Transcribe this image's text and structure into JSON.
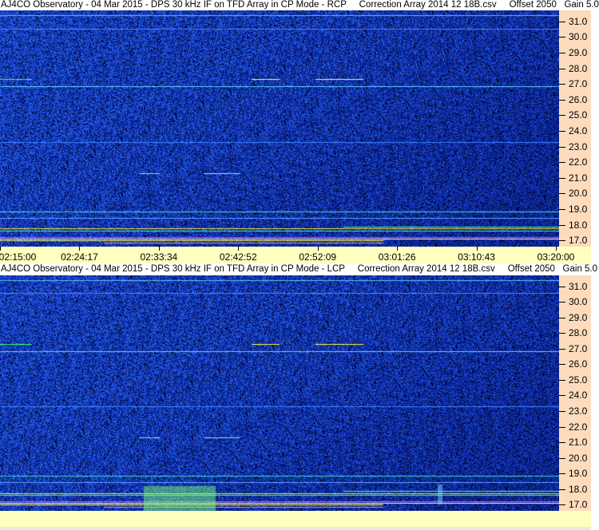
{
  "chart_data": [
    {
      "type": "heatmap",
      "title": "AJ4CO Observatory - 04 Mar 2015 - DPS 30 kHz IF on TFD Array in CP Mode - RCP",
      "correction": "Correction Array 2014 12 18B.csv",
      "offset": "Offset 2050",
      "gain": "Gain 5.0",
      "x_ticks": [
        "02:15:00",
        "02:24:17",
        "02:33:34",
        "02:42:52",
        "02:52:09",
        "03:01:26",
        "03:10:43",
        "03:20:00"
      ],
      "y_ticks": [
        "31.0",
        "30.0",
        "29.0",
        "28.0",
        "27.0",
        "26.0",
        "25.0",
        "24.0",
        "23.0",
        "22.0",
        "21.0",
        "20.0",
        "19.0",
        "18.0",
        "17.0"
      ],
      "ylim": [
        16.6,
        31.7
      ],
      "xlim": [
        "02:15:00",
        "03:20:00"
      ],
      "colormap": [
        "#000020",
        "#0a1f9c",
        "#1f49e0",
        "#30a0ff",
        "#40ffd0",
        "#ffff40",
        "#ff40ff",
        "#ffffff"
      ]
    },
    {
      "type": "heatmap",
      "title": "AJ4CO Observatory - 04 Mar 2015 - DPS 30 kHz IF on TFD Array in CP Mode - LCP",
      "correction": "Correction Array 2014 12 18B.csv",
      "offset": "Offset 2050",
      "gain": "Gain 5.0",
      "y_ticks": [
        "31.0",
        "30.0",
        "29.0",
        "28.0",
        "27.0",
        "26.0",
        "25.0",
        "24.0",
        "23.0",
        "22.0",
        "21.0",
        "20.0",
        "19.0",
        "18.0",
        "17.0"
      ],
      "ylim": [
        16.6,
        31.7
      ],
      "xlim": [
        "02:15:00",
        "03:20:00"
      ]
    }
  ]
}
